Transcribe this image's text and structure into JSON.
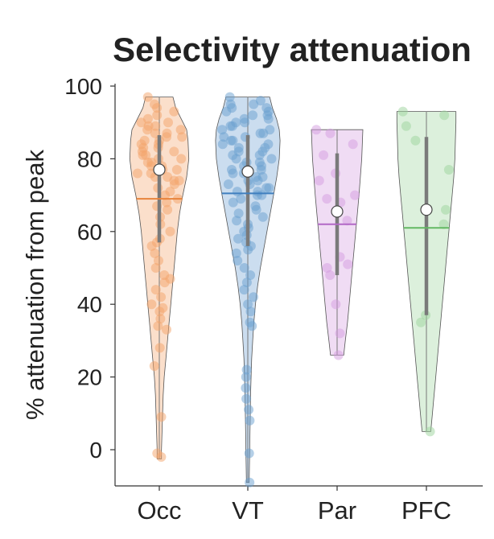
{
  "chart_data": {
    "type": "violin",
    "title": "Selectivity attenuation",
    "xlabel": "",
    "ylabel": "% attenuation from peak",
    "ylim": [
      -10,
      100
    ],
    "yticks": [
      0,
      20,
      40,
      60,
      80,
      100
    ],
    "categories": [
      "Occ",
      "VT",
      "Par",
      "PFC"
    ],
    "series": [
      {
        "name": "Occ",
        "color": "#f4a36a",
        "line_color": "#e8843c",
        "min": -2.5,
        "max": 97,
        "q1": 57,
        "median": 77,
        "q3": 86.5,
        "mean": 69,
        "profile": [
          [
            -2.5,
            0.8
          ],
          [
            0,
            0.8
          ],
          [
            5,
            1
          ],
          [
            10,
            1.2
          ],
          [
            15,
            1.4
          ],
          [
            20,
            1.8
          ],
          [
            25,
            2.4
          ],
          [
            30,
            3
          ],
          [
            35,
            3.6
          ],
          [
            40,
            4.2
          ],
          [
            45,
            4.8
          ],
          [
            50,
            5.4
          ],
          [
            55,
            6
          ],
          [
            60,
            6.6
          ],
          [
            65,
            7.4
          ],
          [
            70,
            8.6
          ],
          [
            75,
            10
          ],
          [
            80,
            10.8
          ],
          [
            85,
            10.5
          ],
          [
            88,
            10
          ],
          [
            91,
            8
          ],
          [
            94,
            6
          ],
          [
            97,
            5
          ]
        ],
        "points": [
          97,
          95,
          94,
          93,
          92,
          91,
          90,
          90,
          89,
          89,
          88,
          88,
          87,
          87,
          86,
          86,
          85,
          85,
          84,
          84,
          83,
          83,
          82,
          82,
          81,
          81,
          80,
          80,
          79,
          79,
          78,
          78,
          77,
          77,
          76,
          76,
          75,
          75,
          74,
          74,
          73,
          72,
          71,
          70,
          69,
          68,
          67,
          66,
          64,
          62,
          60,
          58,
          57,
          56,
          54,
          52,
          50,
          48,
          47,
          46,
          44,
          42,
          40,
          39,
          38,
          36,
          34,
          33,
          28,
          23,
          9,
          -1,
          -2
        ]
      },
      {
        "name": "VT",
        "color": "#6a9fd0",
        "line_color": "#3f7fbf",
        "min": -9,
        "max": 97,
        "q1": 56,
        "median": 76.5,
        "q3": 86.5,
        "mean": 70.5,
        "profile": [
          [
            -9,
            0.5
          ],
          [
            -5,
            0.6
          ],
          [
            0,
            0.7
          ],
          [
            5,
            0.8
          ],
          [
            10,
            0.9
          ],
          [
            15,
            1
          ],
          [
            20,
            1.2
          ],
          [
            25,
            1.4
          ],
          [
            30,
            1.8
          ],
          [
            35,
            2.2
          ],
          [
            40,
            2.8
          ],
          [
            45,
            3.6
          ],
          [
            50,
            4.6
          ],
          [
            55,
            5.8
          ],
          [
            60,
            7
          ],
          [
            65,
            8.2
          ],
          [
            70,
            9.4
          ],
          [
            75,
            10.6
          ],
          [
            80,
            11.5
          ],
          [
            85,
            11.8
          ],
          [
            88,
            11.5
          ],
          [
            91,
            10.5
          ],
          [
            94,
            9
          ],
          [
            97,
            8
          ]
        ],
        "points": [
          97,
          96,
          95,
          95,
          94,
          94,
          93,
          93,
          92,
          92,
          91,
          91,
          90,
          90,
          89,
          89,
          88,
          88,
          87,
          87,
          86,
          86,
          85,
          85,
          84,
          84,
          83,
          83,
          82,
          82,
          81,
          81,
          80,
          80,
          79,
          79,
          78,
          78,
          77,
          77,
          76,
          76,
          75,
          75,
          74,
          74,
          73,
          73,
          72,
          72,
          71,
          71,
          70,
          70,
          69,
          68,
          67,
          66,
          65,
          64,
          63,
          62,
          61,
          60,
          59,
          58,
          57,
          56,
          55,
          54,
          52,
          50,
          48,
          46,
          44,
          42,
          40,
          38,
          35,
          34,
          22,
          20,
          17,
          14,
          11,
          8,
          -1,
          -9
        ]
      },
      {
        "name": "Par",
        "color": "#d39ce0",
        "line_color": "#b268c6",
        "min": 26,
        "max": 88,
        "q1": 48,
        "median": 65.5,
        "q3": 81.5,
        "mean": 62,
        "profile": [
          [
            26,
            2.4
          ],
          [
            30,
            3
          ],
          [
            35,
            3.8
          ],
          [
            40,
            4.4
          ],
          [
            45,
            5
          ],
          [
            50,
            5.6
          ],
          [
            55,
            6.2
          ],
          [
            60,
            6.8
          ],
          [
            65,
            7.4
          ],
          [
            70,
            8
          ],
          [
            75,
            8.5
          ],
          [
            80,
            9
          ],
          [
            84,
            9.2
          ],
          [
            88,
            9.4
          ]
        ],
        "points": [
          88,
          87,
          84,
          81,
          76,
          74,
          70,
          69,
          68,
          63,
          53,
          51,
          50,
          48,
          40,
          32,
          26
        ]
      },
      {
        "name": "PFC",
        "color": "#9bd39b",
        "line_color": "#63b863",
        "min": 5,
        "max": 93,
        "q1": 37,
        "median": 66,
        "q3": 86,
        "mean": 61,
        "profile": [
          [
            5,
            1.6
          ],
          [
            10,
            2.2
          ],
          [
            15,
            2.8
          ],
          [
            20,
            3.4
          ],
          [
            25,
            4
          ],
          [
            30,
            4.6
          ],
          [
            35,
            5.2
          ],
          [
            40,
            5.8
          ],
          [
            45,
            6.4
          ],
          [
            50,
            7
          ],
          [
            55,
            7.6
          ],
          [
            60,
            8.2
          ],
          [
            65,
            8.8
          ],
          [
            70,
            9.4
          ],
          [
            75,
            10
          ],
          [
            80,
            10.4
          ],
          [
            85,
            10.6
          ],
          [
            90,
            10.8
          ],
          [
            93,
            10.8
          ]
        ],
        "points": [
          93,
          92,
          89,
          85,
          77,
          66,
          62,
          37,
          35,
          5
        ]
      }
    ]
  }
}
